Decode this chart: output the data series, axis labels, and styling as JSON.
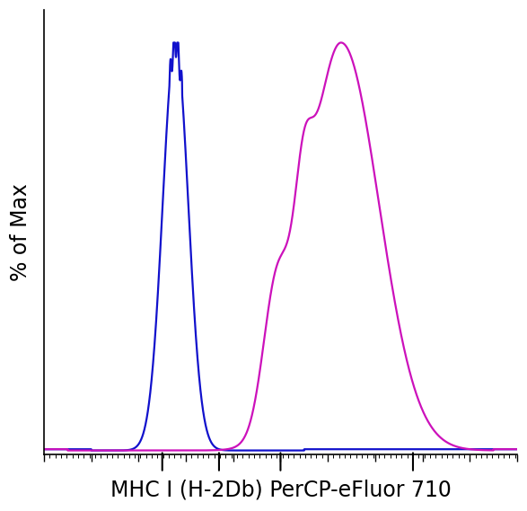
{
  "title": "",
  "xlabel": "MHC I (H-2Db) PerCP-eFluor 710",
  "ylabel": "% of Max",
  "xlabel_fontsize": 17,
  "ylabel_fontsize": 17,
  "background_color": "#ffffff",
  "line_color_blue": "#1111cc",
  "line_color_magenta": "#cc11bb",
  "linewidth": 1.6,
  "xlim": [
    0,
    1000
  ],
  "ylim": [
    -0.01,
    1.08
  ]
}
